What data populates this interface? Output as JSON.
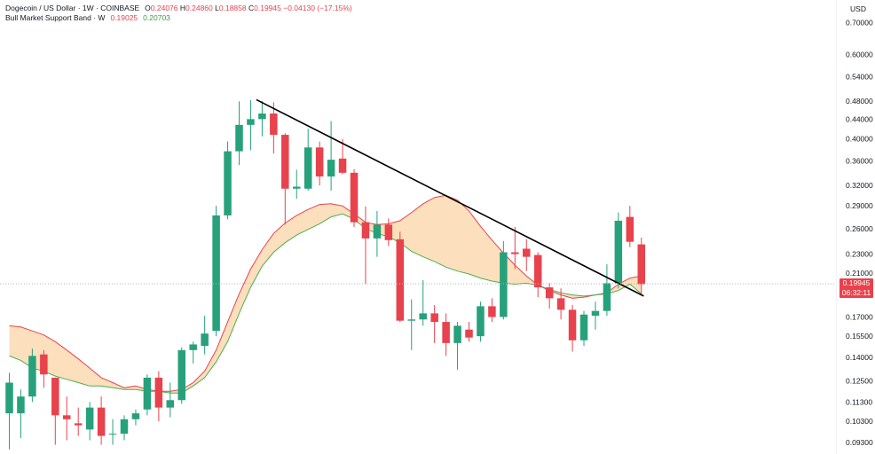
{
  "legend": {
    "symbol_title": "Dogecoin / US Dollar · 1W · COINBASE",
    "open_key": "O",
    "open": "0.24076",
    "high_key": "H",
    "high": "0.24860",
    "low_key": "L",
    "low": "0.18858",
    "close_key": "C",
    "close": "0.19945",
    "change": "−0.04130 (−17.15%)",
    "indicator_title": "Bull Market Support Band · W",
    "band_low": "0.19025",
    "band_high": "0.20703"
  },
  "currency": "USD",
  "price_label": {
    "price": "0.19945",
    "countdown": "06:32:11"
  },
  "colors": {
    "up": "#26a17b",
    "down": "#e8424d",
    "band_fill": "#fbd9b0",
    "sma": "#e8424d",
    "ema": "#4caf50",
    "trendline": "#000000"
  },
  "chart_data": {
    "type": "candlestick",
    "scale": "log",
    "ylim": [
      0.088,
      0.78
    ],
    "yticks": [
      "0.70000",
      "0.60000",
      "0.54000",
      "0.48000",
      "0.44000",
      "0.40000",
      "0.36000",
      "0.32000",
      "0.29000",
      "0.26000",
      "0.23000",
      "0.21000",
      "0.17000",
      "0.15500",
      "0.14000",
      "0.12500",
      "0.11300",
      "0.10300",
      "0.09300"
    ],
    "candles": [
      {
        "o": 0.107,
        "h": 0.13,
        "l": 0.09,
        "c": 0.124
      },
      {
        "o": 0.107,
        "h": 0.12,
        "l": 0.095,
        "c": 0.116
      },
      {
        "o": 0.116,
        "h": 0.146,
        "l": 0.113,
        "c": 0.141
      },
      {
        "o": 0.142,
        "h": 0.145,
        "l": 0.121,
        "c": 0.129
      },
      {
        "o": 0.127,
        "h": 0.127,
        "l": 0.092,
        "c": 0.106
      },
      {
        "o": 0.106,
        "h": 0.116,
        "l": 0.094,
        "c": 0.104
      },
      {
        "o": 0.102,
        "h": 0.11,
        "l": 0.096,
        "c": 0.101
      },
      {
        "o": 0.099,
        "h": 0.113,
        "l": 0.094,
        "c": 0.11
      },
      {
        "o": 0.11,
        "h": 0.116,
        "l": 0.092,
        "c": 0.096
      },
      {
        "o": 0.097,
        "h": 0.104,
        "l": 0.092,
        "c": 0.097
      },
      {
        "o": 0.097,
        "h": 0.106,
        "l": 0.094,
        "c": 0.104
      },
      {
        "o": 0.104,
        "h": 0.109,
        "l": 0.101,
        "c": 0.107
      },
      {
        "o": 0.109,
        "h": 0.129,
        "l": 0.106,
        "c": 0.127
      },
      {
        "o": 0.127,
        "h": 0.131,
        "l": 0.103,
        "c": 0.11
      },
      {
        "o": 0.11,
        "h": 0.124,
        "l": 0.105,
        "c": 0.114
      },
      {
        "o": 0.114,
        "h": 0.147,
        "l": 0.112,
        "c": 0.145
      },
      {
        "o": 0.145,
        "h": 0.151,
        "l": 0.136,
        "c": 0.149
      },
      {
        "o": 0.148,
        "h": 0.171,
        "l": 0.142,
        "c": 0.157
      },
      {
        "o": 0.159,
        "h": 0.29,
        "l": 0.155,
        "c": 0.277
      },
      {
        "o": 0.277,
        "h": 0.395,
        "l": 0.272,
        "c": 0.377
      },
      {
        "o": 0.377,
        "h": 0.479,
        "l": 0.353,
        "c": 0.428
      },
      {
        "o": 0.428,
        "h": 0.482,
        "l": 0.379,
        "c": 0.44
      },
      {
        "o": 0.44,
        "h": 0.48,
        "l": 0.405,
        "c": 0.452
      },
      {
        "o": 0.452,
        "h": 0.477,
        "l": 0.373,
        "c": 0.408
      },
      {
        "o": 0.408,
        "h": 0.411,
        "l": 0.265,
        "c": 0.315
      },
      {
        "o": 0.315,
        "h": 0.345,
        "l": 0.3,
        "c": 0.318
      },
      {
        "o": 0.315,
        "h": 0.42,
        "l": 0.312,
        "c": 0.384
      },
      {
        "o": 0.384,
        "h": 0.395,
        "l": 0.32,
        "c": 0.334
      },
      {
        "o": 0.334,
        "h": 0.436,
        "l": 0.312,
        "c": 0.362
      },
      {
        "o": 0.364,
        "h": 0.4,
        "l": 0.338,
        "c": 0.34
      },
      {
        "o": 0.34,
        "h": 0.346,
        "l": 0.262,
        "c": 0.268
      },
      {
        "o": 0.268,
        "h": 0.289,
        "l": 0.199,
        "c": 0.248
      },
      {
        "o": 0.248,
        "h": 0.283,
        "l": 0.227,
        "c": 0.265
      },
      {
        "o": 0.265,
        "h": 0.273,
        "l": 0.239,
        "c": 0.246
      },
      {
        "o": 0.247,
        "h": 0.256,
        "l": 0.166,
        "c": 0.167
      },
      {
        "o": 0.167,
        "h": 0.185,
        "l": 0.145,
        "c": 0.168
      },
      {
        "o": 0.168,
        "h": 0.203,
        "l": 0.163,
        "c": 0.173
      },
      {
        "o": 0.173,
        "h": 0.18,
        "l": 0.15,
        "c": 0.166
      },
      {
        "o": 0.166,
        "h": 0.173,
        "l": 0.141,
        "c": 0.15
      },
      {
        "o": 0.15,
        "h": 0.166,
        "l": 0.132,
        "c": 0.163
      },
      {
        "o": 0.16,
        "h": 0.166,
        "l": 0.151,
        "c": 0.154
      },
      {
        "o": 0.155,
        "h": 0.183,
        "l": 0.151,
        "c": 0.179
      },
      {
        "o": 0.179,
        "h": 0.186,
        "l": 0.166,
        "c": 0.17
      },
      {
        "o": 0.17,
        "h": 0.245,
        "l": 0.168,
        "c": 0.232
      },
      {
        "o": 0.232,
        "h": 0.262,
        "l": 0.214,
        "c": 0.23
      },
      {
        "o": 0.236,
        "h": 0.247,
        "l": 0.212,
        "c": 0.227
      },
      {
        "o": 0.229,
        "h": 0.232,
        "l": 0.187,
        "c": 0.196
      },
      {
        "o": 0.196,
        "h": 0.2,
        "l": 0.177,
        "c": 0.186
      },
      {
        "o": 0.186,
        "h": 0.195,
        "l": 0.168,
        "c": 0.176
      },
      {
        "o": 0.176,
        "h": 0.18,
        "l": 0.144,
        "c": 0.152
      },
      {
        "o": 0.152,
        "h": 0.175,
        "l": 0.148,
        "c": 0.172
      },
      {
        "o": 0.171,
        "h": 0.183,
        "l": 0.16,
        "c": 0.175
      },
      {
        "o": 0.175,
        "h": 0.219,
        "l": 0.171,
        "c": 0.2
      },
      {
        "o": 0.2,
        "h": 0.281,
        "l": 0.195,
        "c": 0.27
      },
      {
        "o": 0.275,
        "h": 0.29,
        "l": 0.238,
        "c": 0.244
      },
      {
        "o": 0.241,
        "h": 0.249,
        "l": 0.189,
        "c": 0.199
      }
    ],
    "band_sma": [
      0.163,
      0.162,
      0.159,
      0.156,
      0.151,
      0.145,
      0.139,
      0.133,
      0.127,
      0.124,
      0.121,
      0.122,
      0.12,
      0.119,
      0.119,
      0.12,
      0.124,
      0.131,
      0.145,
      0.166,
      0.19,
      0.214,
      0.235,
      0.254,
      0.267,
      0.277,
      0.285,
      0.292,
      0.293,
      0.29,
      0.279,
      0.268,
      0.265,
      0.266,
      0.27,
      0.281,
      0.293,
      0.302,
      0.305,
      0.298,
      0.283,
      0.263,
      0.246,
      0.231,
      0.218,
      0.207,
      0.198,
      0.193,
      0.189,
      0.186,
      0.187,
      0.189,
      0.191,
      0.199,
      0.205,
      0.207
    ],
    "band_ema": [
      0.141,
      0.138,
      0.133,
      0.131,
      0.128,
      0.126,
      0.124,
      0.122,
      0.122,
      0.121,
      0.12,
      0.12,
      0.119,
      0.119,
      0.118,
      0.118,
      0.122,
      0.127,
      0.137,
      0.151,
      0.173,
      0.196,
      0.217,
      0.232,
      0.243,
      0.252,
      0.259,
      0.266,
      0.275,
      0.279,
      0.272,
      0.26,
      0.254,
      0.25,
      0.243,
      0.233,
      0.227,
      0.222,
      0.216,
      0.212,
      0.209,
      0.205,
      0.202,
      0.2,
      0.199,
      0.2,
      0.198,
      0.194,
      0.191,
      0.189,
      0.188,
      0.189,
      0.19,
      0.193,
      0.199,
      0.19
    ],
    "trendline": {
      "from": {
        "index": 21.5,
        "price": 0.483
      },
      "to": {
        "index": 55.2,
        "price": 0.188
      }
    },
    "last_price": 0.19945
  }
}
